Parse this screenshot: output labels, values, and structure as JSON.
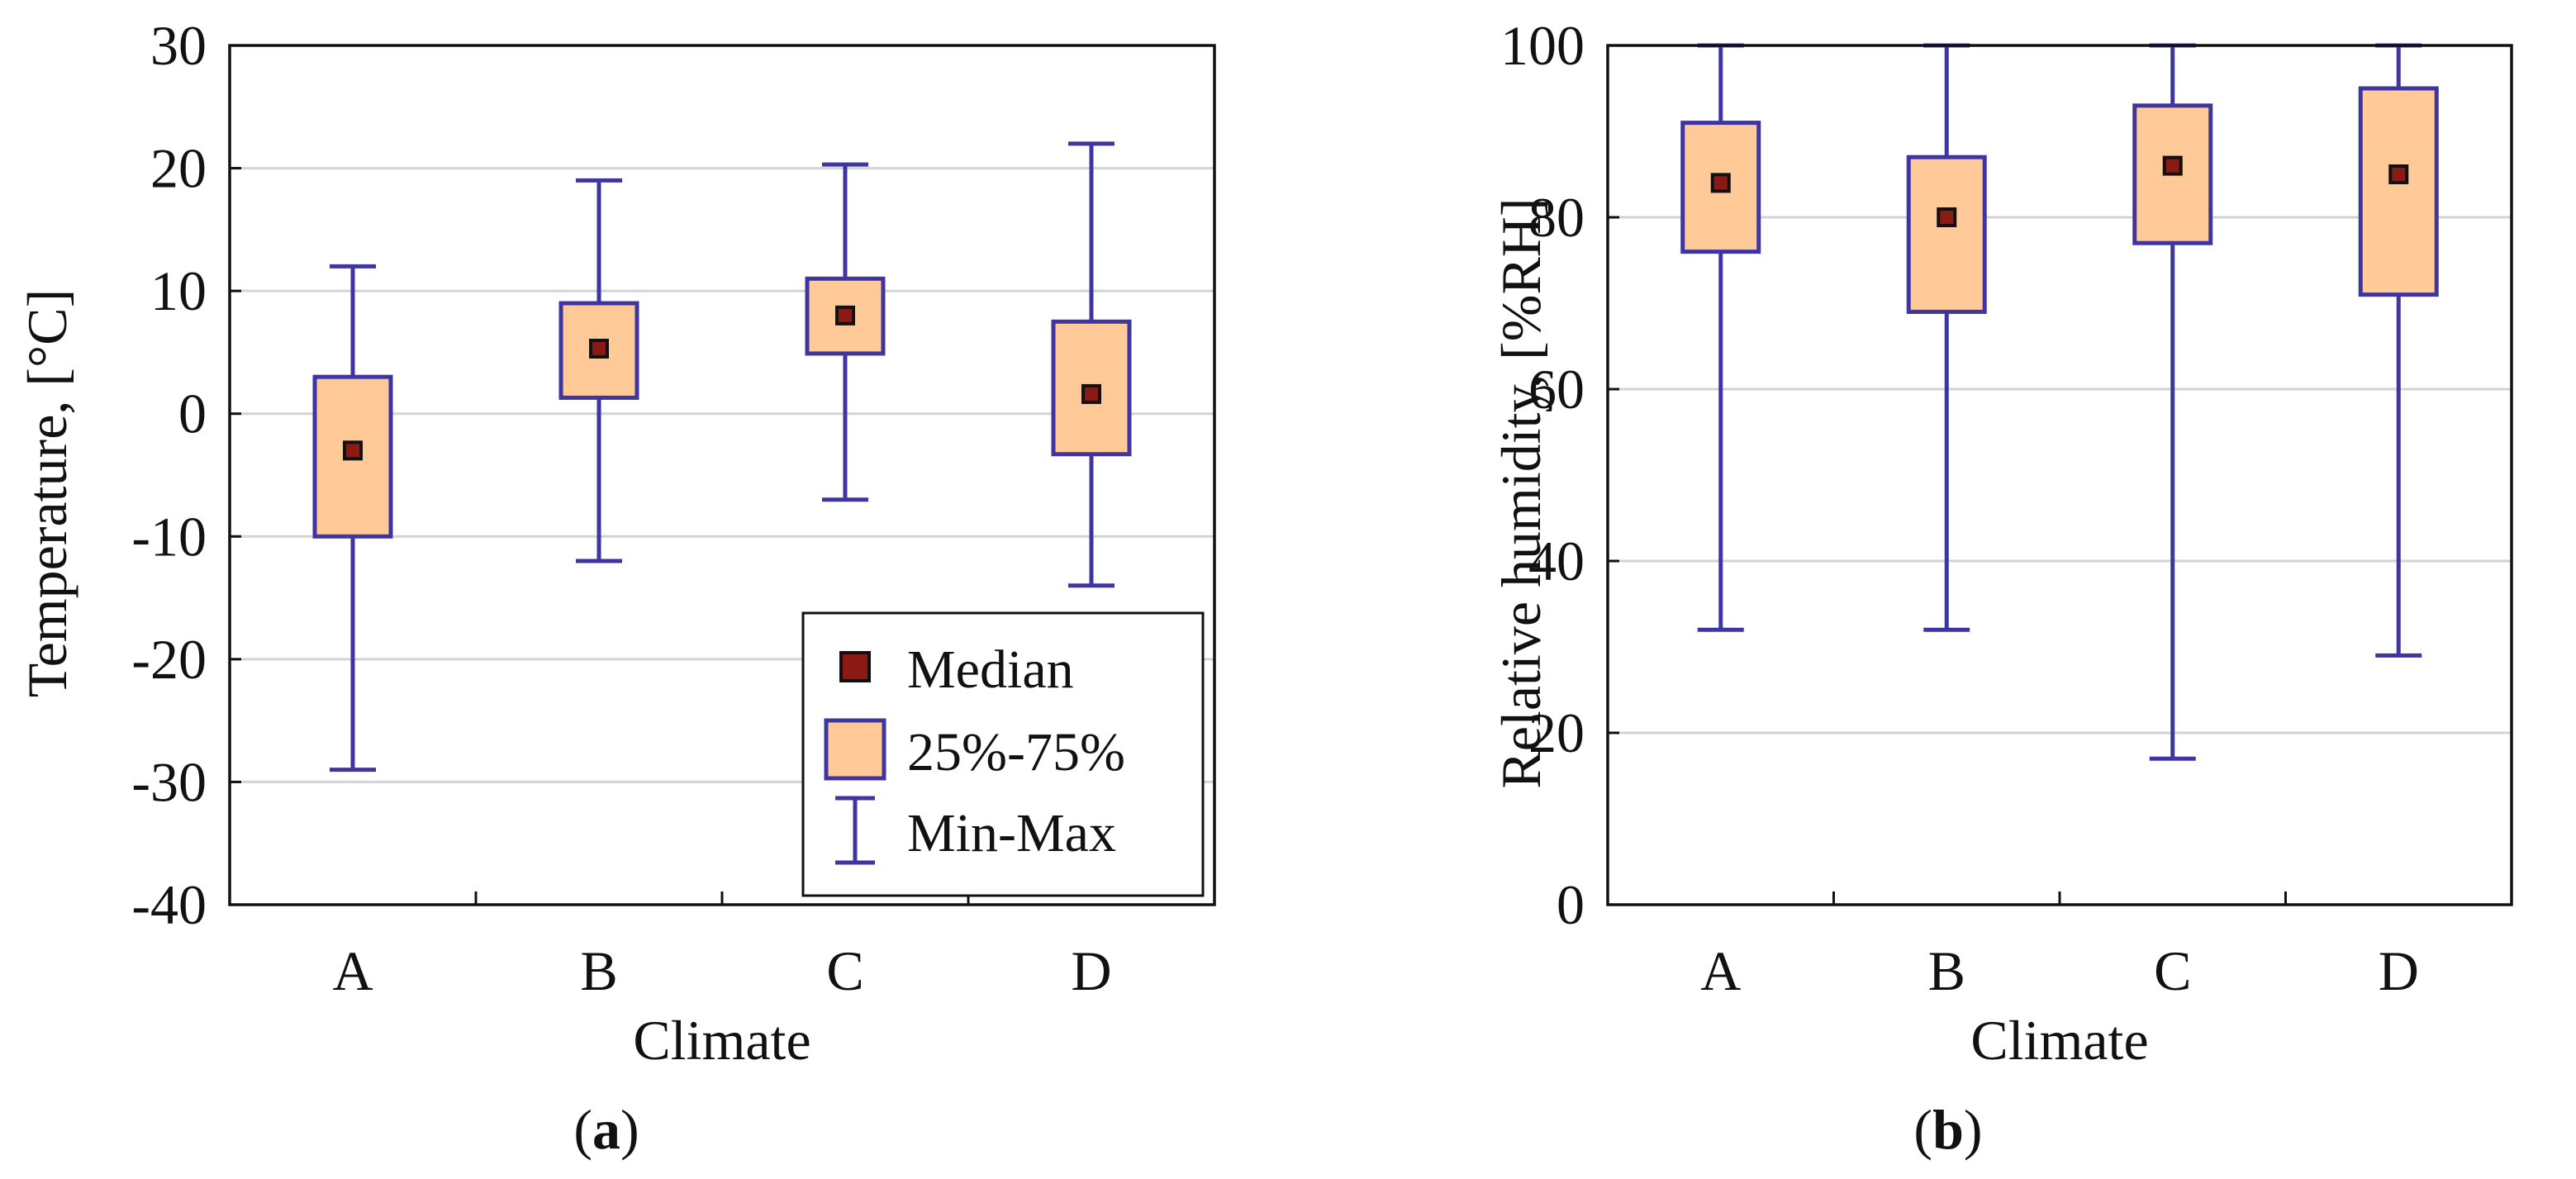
{
  "figure_labels": {
    "a": {
      "open": "(",
      "letter": "a",
      "close": ")"
    },
    "b": {
      "open": "(",
      "letter": "b",
      "close": ")"
    }
  },
  "colors": {
    "box_fill": "#FFCA98",
    "box_edge": "#3F35A0",
    "whisker": "#3F35A0",
    "median_fill": "#8B1A14",
    "median_edge": "#111111",
    "grid": "#D3D3D3",
    "axis": "#111111"
  },
  "legend": {
    "median": "Median",
    "iqr": "25%-75%",
    "minmax": "Min-Max"
  },
  "chart_data": [
    {
      "type": "box",
      "panel": "a",
      "xlabel": "Climate",
      "ylabel": "Temperature, [°C]",
      "ylim": [
        -40,
        30
      ],
      "yticks": [
        -40,
        -30,
        -20,
        -10,
        0,
        10,
        20,
        30
      ],
      "ytick_labels": [
        "-40",
        "-30",
        "-20",
        "-10",
        "0",
        "10",
        "20",
        "30"
      ],
      "grid": true,
      "legend_position": "bottom-right",
      "categories": [
        "A",
        "B",
        "C",
        "D"
      ],
      "series": [
        {
          "name": "A",
          "min": -29,
          "q1": -10,
          "median": -3,
          "q3": 3,
          "max": 12
        },
        {
          "name": "B",
          "min": -12,
          "q1": 1.3,
          "median": 5.3,
          "q3": 9,
          "max": 19
        },
        {
          "name": "C",
          "min": -7,
          "q1": 4.9,
          "median": 8,
          "q3": 11,
          "max": 20.3
        },
        {
          "name": "D",
          "min": -14,
          "q1": -3.3,
          "median": 1.6,
          "q3": 7.5,
          "max": 22
        }
      ]
    },
    {
      "type": "box",
      "panel": "b",
      "xlabel": "Climate",
      "ylabel": "Relative humidity, [%RH]",
      "ylim": [
        0,
        100
      ],
      "yticks": [
        0,
        20,
        40,
        60,
        80,
        100
      ],
      "ytick_labels": [
        "0",
        "20",
        "40",
        "60",
        "80",
        "100"
      ],
      "grid": true,
      "categories": [
        "A",
        "B",
        "C",
        "D"
      ],
      "series": [
        {
          "name": "A",
          "min": 32,
          "q1": 76,
          "median": 84,
          "q3": 91,
          "max": 100
        },
        {
          "name": "B",
          "min": 32,
          "q1": 69,
          "median": 80,
          "q3": 87,
          "max": 100
        },
        {
          "name": "C",
          "min": 17,
          "q1": 77,
          "median": 86,
          "q3": 93,
          "max": 100
        },
        {
          "name": "D",
          "min": 29,
          "q1": 71,
          "median": 85,
          "q3": 95,
          "max": 100
        }
      ]
    }
  ]
}
